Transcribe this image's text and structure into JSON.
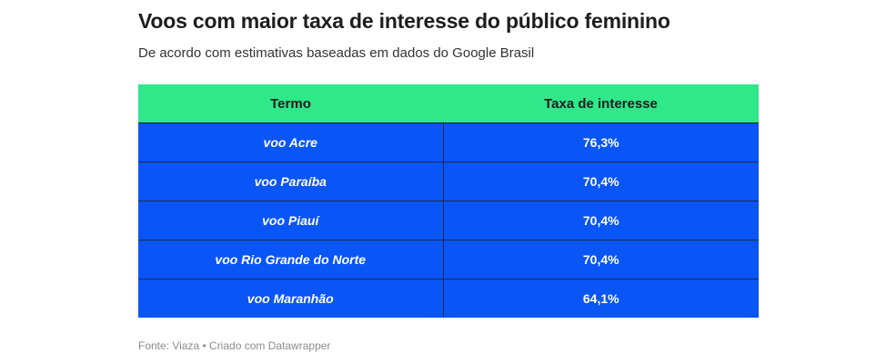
{
  "chart_data": {
    "type": "table",
    "title": "Voos com maior taxa de interesse do público feminino",
    "subtitle": "De acordo com estimativas baseadas em dados do Google Brasil",
    "columns": [
      "Termo",
      "Taxa de interesse"
    ],
    "rows": [
      {
        "term": "voo Acre",
        "rate": "76,3%"
      },
      {
        "term": "voo Paraíba",
        "rate": "70,4%"
      },
      {
        "term": "voo Piauí",
        "rate": "70,4%"
      },
      {
        "term": "voo Rio Grande do Norte",
        "rate": "70,4%"
      },
      {
        "term": "voo Maranhão",
        "rate": "64,1%"
      }
    ],
    "values": [
      76.3,
      70.4,
      70.4,
      70.4,
      64.1
    ],
    "footer": "Fonte: Viaza • Criado com Datawrapper"
  },
  "colors": {
    "header_bg": "#2ee88a",
    "row_bg": "#0a55f5",
    "row_text": "#ffffff",
    "title_text": "#1d1d1d"
  }
}
